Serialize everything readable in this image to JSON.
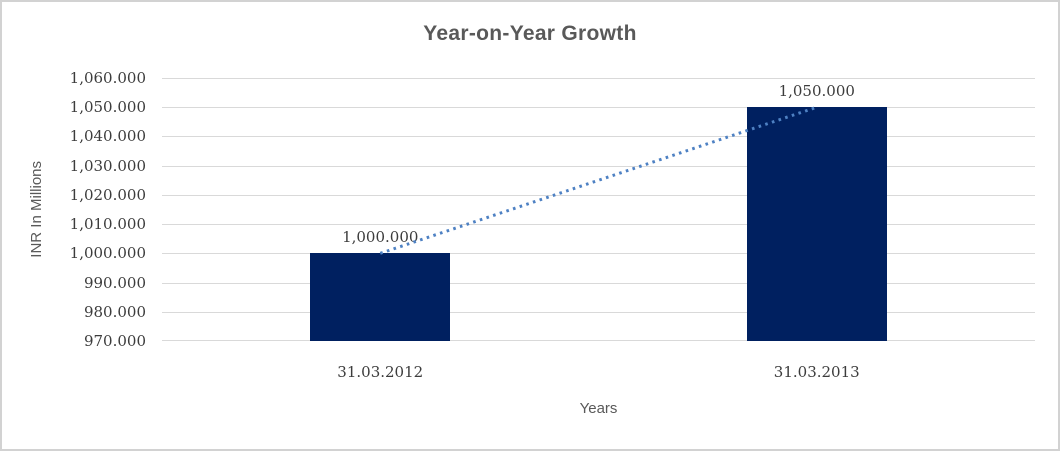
{
  "chart_data": {
    "type": "bar",
    "title": "Year-on-Year Growth",
    "xlabel": "Years",
    "ylabel": "INR In Millions",
    "categories": [
      "31.03.2012",
      "31.03.2013"
    ],
    "series": [
      {
        "values": [
          1000.0,
          1050.0
        ],
        "data_labels": [
          "1,000.000",
          "1,050.000"
        ]
      }
    ],
    "ylim": [
      970,
      1060
    ],
    "yticks": [
      {
        "value": 1060,
        "label": "1,060.000"
      },
      {
        "value": 1050,
        "label": "1,050.000"
      },
      {
        "value": 1040,
        "label": "1,040.000"
      },
      {
        "value": 1030,
        "label": "1,030.000"
      },
      {
        "value": 1020,
        "label": "1,020.000"
      },
      {
        "value": 1010,
        "label": "1,010.000"
      },
      {
        "value": 1000,
        "label": "1,000.000"
      },
      {
        "value": 990,
        "label": "990.000"
      },
      {
        "value": 980,
        "label": "980.000"
      },
      {
        "value": 970,
        "label": "970.000"
      }
    ],
    "grid": "horizontal",
    "legend": "none",
    "trendline": {
      "style": "dotted",
      "from_value": 1000,
      "to_value": 1050
    },
    "colors": {
      "bar": "#002060",
      "trendline": "#4e81c3",
      "gridline": "#d9d9d9",
      "title": "#595959",
      "axis_title": "#595959",
      "tick_label": "#3c3c3c",
      "border": "#d2d2d2"
    }
  }
}
